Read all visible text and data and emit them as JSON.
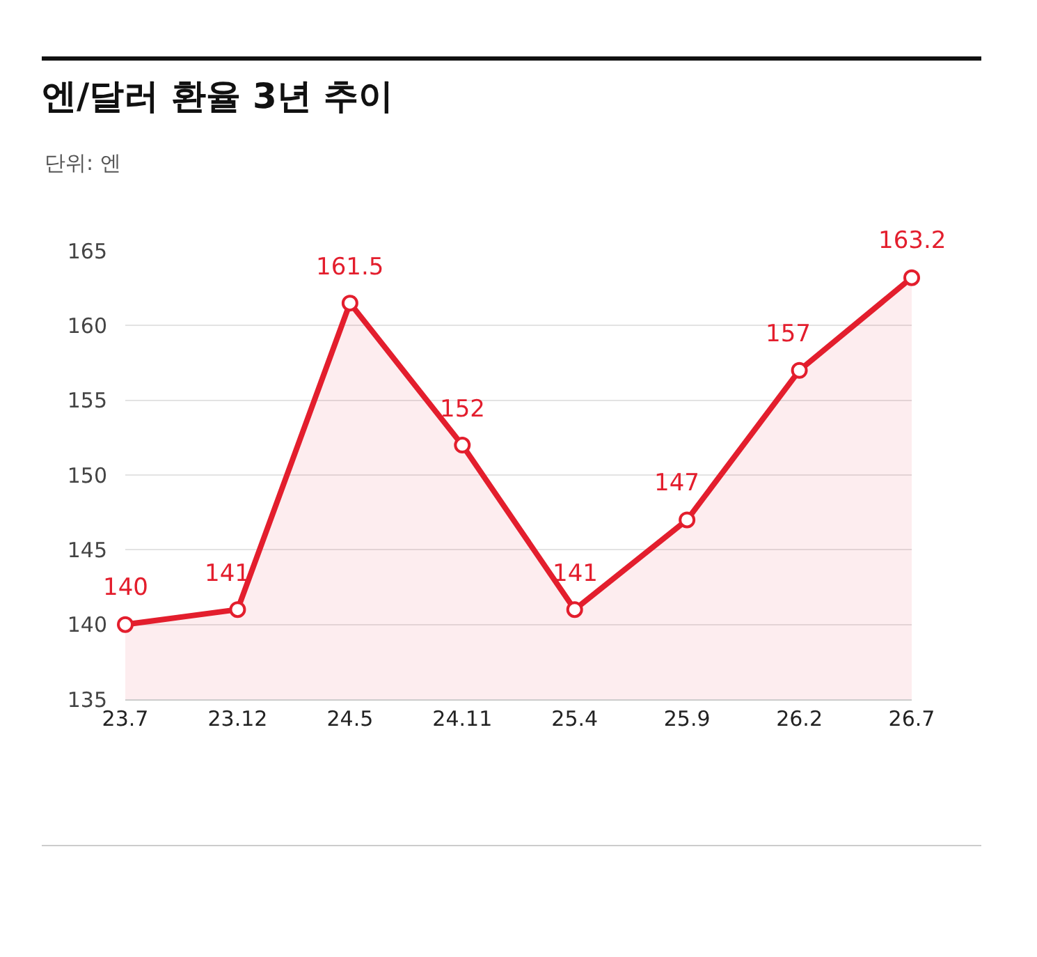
{
  "chart_data": {
    "type": "area",
    "title": "엔/달러 환율 3년 추이",
    "subtitle": "단위: 엔",
    "categories": [
      "23.7",
      "23.12",
      "24.5",
      "24.11",
      "25.4",
      "25.9",
      "26.2",
      "26.7"
    ],
    "series": [
      {
        "color": "#e31e2d",
        "values": [
          140,
          141,
          161.5,
          152,
          141,
          147,
          157,
          163.2
        ]
      }
    ],
    "ylim": [
      135,
      165
    ],
    "yticks": [
      135,
      140,
      145,
      150,
      155,
      160,
      165
    ],
    "grid": "y",
    "marker": "circle",
    "line_style": "solid",
    "data_labels": true,
    "legend": false
  }
}
